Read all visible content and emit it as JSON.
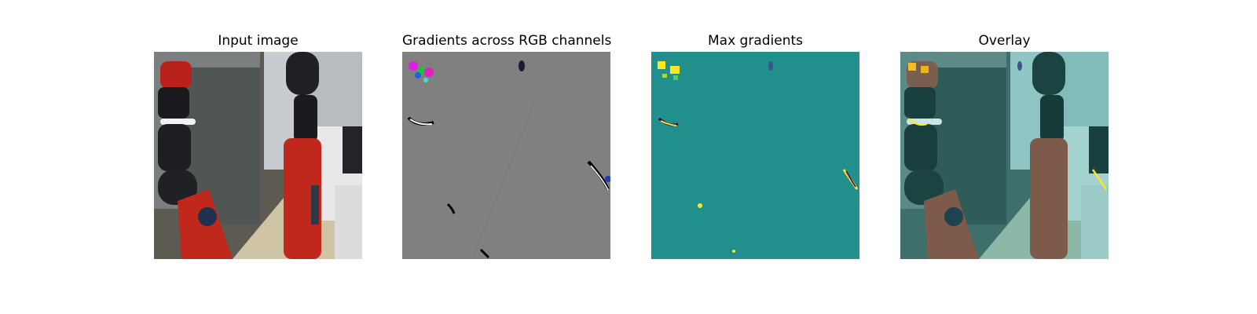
{
  "figure": {
    "panels": [
      {
        "title": "Input image",
        "content": "robot-arm-photo"
      },
      {
        "title": "Gradients across RGB channels",
        "content": "rgb-gradient-map"
      },
      {
        "title": "Max gradients",
        "content": "max-gradient-heatmap"
      },
      {
        "title": "Overlay",
        "content": "gradient-overlay-photo"
      }
    ],
    "colors": {
      "gradient_background": "#808080",
      "heatmap_background": "#21908d",
      "heatmap_high": "#fde725",
      "robot_red": "#c0281c",
      "overlay_tint": "#21908d"
    }
  }
}
